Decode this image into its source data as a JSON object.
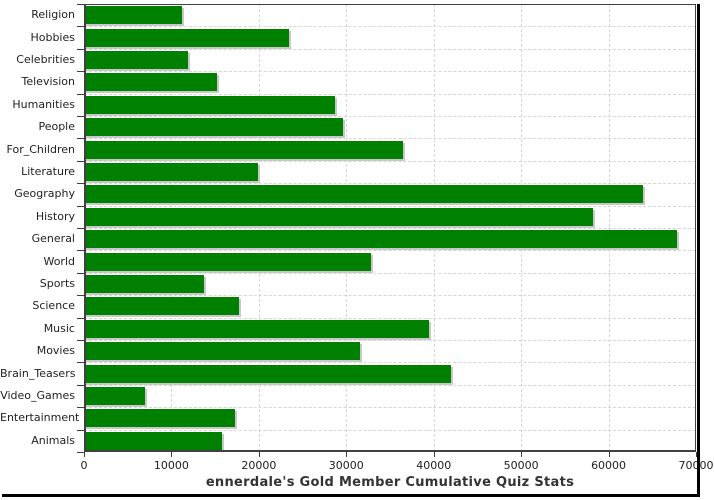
{
  "chart_data": {
    "type": "bar",
    "orientation": "horizontal",
    "title": "ennerdale's Gold Member Cumulative Quiz Stats",
    "categories": [
      "Religion",
      "Hobbies",
      "Celebrities",
      "Television",
      "Humanities",
      "People",
      "For_Children",
      "Literature",
      "Geography",
      "History",
      "General",
      "World",
      "Sports",
      "Science",
      "Music",
      "Movies",
      "Brain_Teasers",
      "Video_Games",
      "Entertainment",
      "Animals"
    ],
    "values": [
      11200,
      23500,
      11900,
      15200,
      28700,
      29600,
      36500,
      19900,
      63900,
      58200,
      67800,
      32800,
      13700,
      17700,
      39500,
      31600,
      42000,
      7000,
      17300,
      15800
    ],
    "xlabel": "",
    "ylabel": "",
    "xlim": [
      0,
      70000
    ],
    "x_ticks": [
      0,
      10000,
      20000,
      30000,
      40000,
      50000,
      60000,
      70000
    ],
    "x_tick_labels": [
      "0",
      "10000",
      "20000",
      "30000",
      "40000",
      "50000",
      "60000",
      "70000"
    ],
    "grid": "dashed, vertical at each x tick and horizontal at each row boundary",
    "legend": "none"
  },
  "colors": {
    "bar": "#008000",
    "bar_shadow": "#c8c8c8",
    "grid": "#d6d6d6",
    "axis": "#404040",
    "tick_text": "#222222",
    "title_text": "#333333",
    "background": "#ffffff",
    "frame_shadow": "#000000"
  }
}
